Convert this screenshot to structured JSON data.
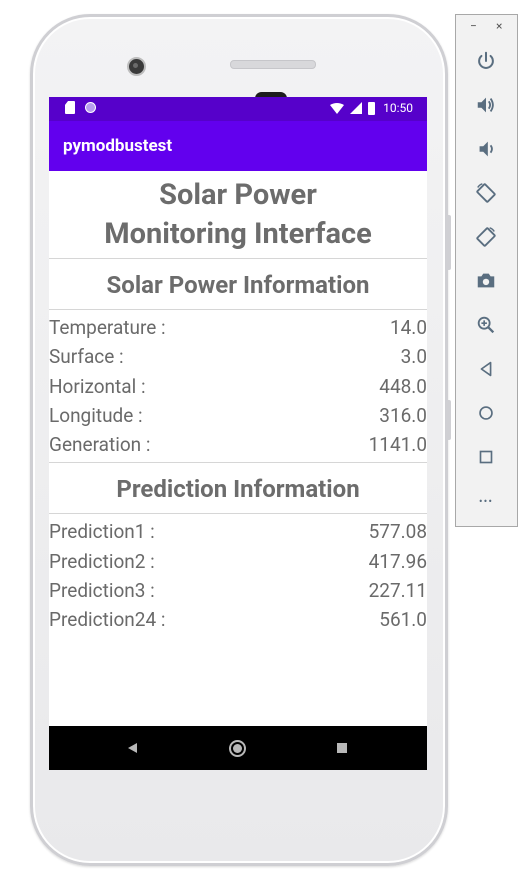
{
  "status_bar": {
    "time": "10:50"
  },
  "app_bar": {
    "title": "pymodbustest"
  },
  "main": {
    "title_line1": "Solar Power",
    "title_line2": "Monitoring Interface",
    "solar_section": {
      "title": "Solar Power Information",
      "rows": [
        {
          "label": "Temperature :",
          "value": "14.0"
        },
        {
          "label": "Surface :",
          "value": "3.0"
        },
        {
          "label": "Horizontal :",
          "value": "448.0"
        },
        {
          "label": "Longitude :",
          "value": "316.0"
        },
        {
          "label": "Generation :",
          "value": "1141.0"
        }
      ]
    },
    "prediction_section": {
      "title": "Prediction Information",
      "rows": [
        {
          "label": "Prediction1 :",
          "value": "577.08"
        },
        {
          "label": "Prediction2 :",
          "value": "417.96"
        },
        {
          "label": "Prediction3 :",
          "value": "227.11"
        },
        {
          "label": "Prediction24 :",
          "value": "561.0"
        }
      ]
    }
  },
  "emulator_toolbar": {
    "minimize_label": "−",
    "close_label": "×",
    "more_label": "•••",
    "icons": [
      "power-icon",
      "volume-up-icon",
      "volume-down-icon",
      "rotate-left-icon",
      "rotate-right-icon",
      "camera-icon",
      "zoom-icon",
      "back-icon",
      "home-icon",
      "overview-icon",
      "more-icon"
    ]
  },
  "colors": {
    "status_bar": "#5601ca",
    "app_bar": "#6200ee",
    "text_gray": "#6a6a6a",
    "toolbar_icon": "#5a6e80"
  }
}
